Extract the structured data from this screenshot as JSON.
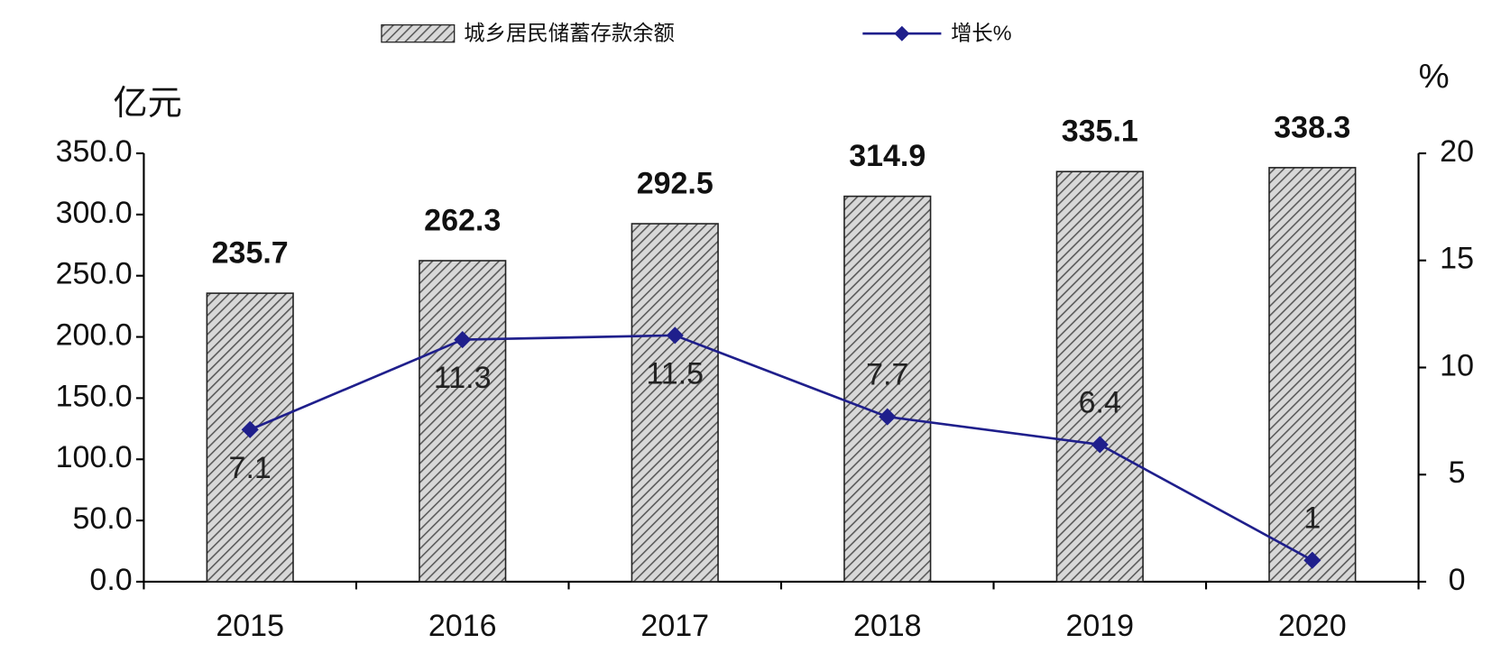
{
  "chart_data": {
    "type": "bar",
    "categories": [
      "2015",
      "2016",
      "2017",
      "2018",
      "2019",
      "2020"
    ],
    "series": [
      {
        "name": "城乡居民储蓄存款余额",
        "type": "bar",
        "color": "#9a9a9a",
        "values": [
          235.7,
          262.3,
          292.5,
          314.9,
          335.1,
          338.3
        ]
      },
      {
        "name": "增长%",
        "type": "line",
        "axis": "y2",
        "color": "#1f1f8c",
        "values": [
          7.1,
          11.3,
          11.5,
          7.7,
          6.4,
          1
        ]
      }
    ],
    "y_label": "亿元",
    "y2_label": "%",
    "ylim": [
      0,
      350
    ],
    "yticks": [
      {
        "value": 0,
        "label": "0.0"
      },
      {
        "value": 50,
        "label": "50.0"
      },
      {
        "value": 100,
        "label": "100.0"
      },
      {
        "value": 150,
        "label": "150.0"
      },
      {
        "value": 200,
        "label": "200.0"
      },
      {
        "value": 250,
        "label": "250.0"
      },
      {
        "value": 300,
        "label": "300.0"
      },
      {
        "value": 350,
        "label": "350.0"
      }
    ],
    "y2lim": [
      0,
      20
    ],
    "y2ticks": [
      0,
      5,
      10,
      15,
      20
    ],
    "grid": false,
    "legend": "top"
  }
}
